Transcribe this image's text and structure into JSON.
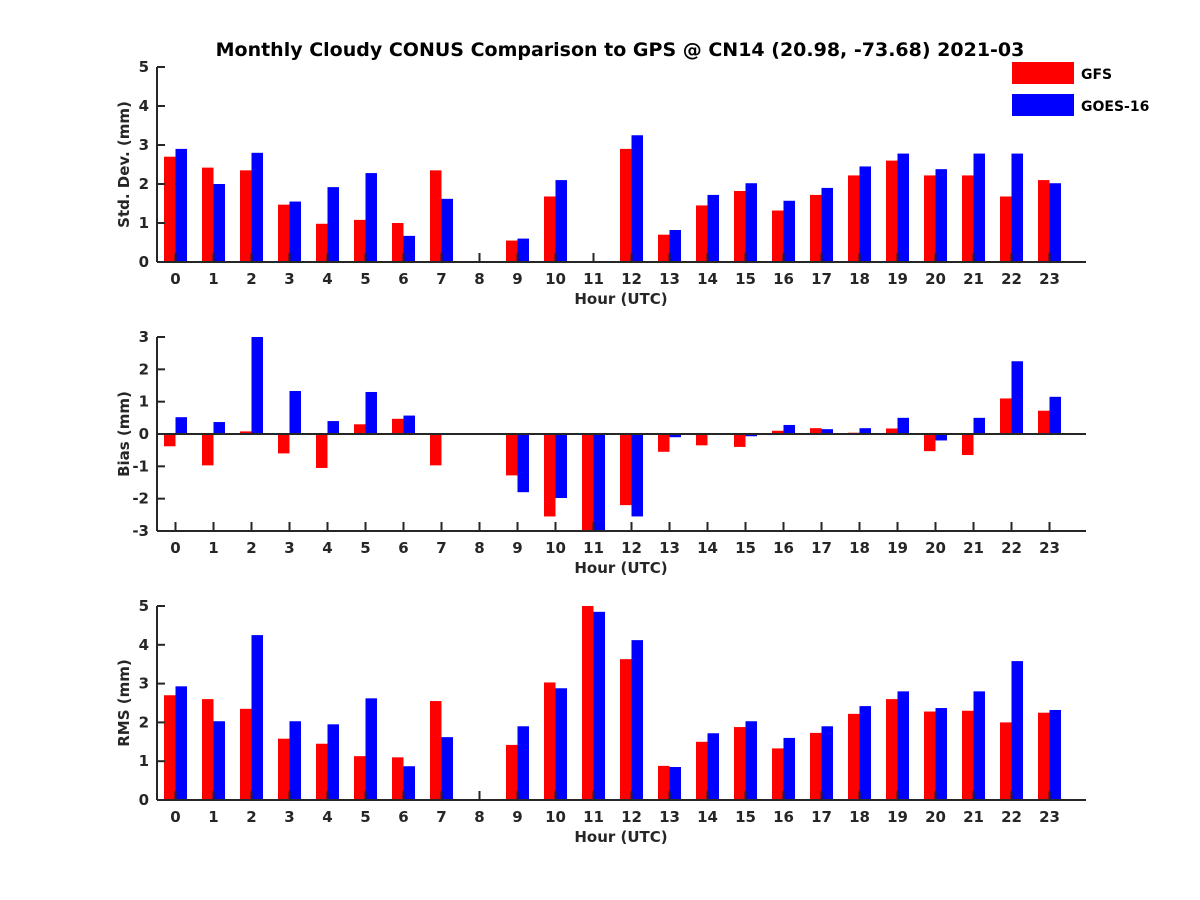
{
  "title": "Monthly Cloudy CONUS Comparison to GPS @ CN14 (20.98, -73.68) 2021-03",
  "colors": {
    "gfs": "#ff0000",
    "goes": "#0000ff",
    "axis": "#262626"
  },
  "legend": {
    "placement": "top-right",
    "entries": [
      "GFS",
      "GOES-16"
    ]
  },
  "chart_data": [
    {
      "type": "bar",
      "id": "std",
      "ylabel": "Std. Dev. (mm)",
      "xlabel": "Hour (UTC)",
      "ylim": [
        0,
        5
      ],
      "yticks": [
        0,
        1,
        2,
        3,
        4,
        5
      ],
      "categories": [
        "0",
        "1",
        "2",
        "3",
        "4",
        "5",
        "6",
        "7",
        "8",
        "9",
        "10",
        "11",
        "12",
        "13",
        "14",
        "15",
        "16",
        "17",
        "18",
        "19",
        "20",
        "21",
        "22",
        "23"
      ],
      "series": [
        {
          "name": "GFS",
          "values": [
            2.7,
            2.42,
            2.35,
            1.47,
            0.98,
            1.08,
            1.0,
            2.35,
            null,
            0.55,
            1.68,
            null,
            2.9,
            0.7,
            1.45,
            1.82,
            1.32,
            1.72,
            2.22,
            2.6,
            2.22,
            2.22,
            1.68,
            2.1
          ]
        },
        {
          "name": "GOES-16",
          "values": [
            2.9,
            2.0,
            2.8,
            1.55,
            1.92,
            2.28,
            0.67,
            1.62,
            null,
            0.6,
            2.1,
            null,
            3.25,
            0.82,
            1.72,
            2.02,
            1.57,
            1.9,
            2.45,
            2.78,
            2.38,
            2.78,
            2.78,
            2.02
          ]
        }
      ]
    },
    {
      "type": "bar",
      "id": "bias",
      "ylabel": "Bias (mm)",
      "xlabel": "Hour (UTC)",
      "ylim": [
        -3,
        3
      ],
      "yticks": [
        -3,
        -2,
        -1,
        0,
        1,
        2,
        3
      ],
      "categories": [
        "0",
        "1",
        "2",
        "3",
        "4",
        "5",
        "6",
        "7",
        "8",
        "9",
        "10",
        "11",
        "12",
        "13",
        "14",
        "15",
        "16",
        "17",
        "18",
        "19",
        "20",
        "21",
        "22",
        "23"
      ],
      "series": [
        {
          "name": "GFS",
          "values": [
            -0.38,
            -0.97,
            0.08,
            -0.6,
            -1.05,
            0.3,
            0.47,
            -0.97,
            null,
            -1.28,
            -2.55,
            -3.0,
            -2.2,
            -0.55,
            -0.35,
            -0.4,
            0.1,
            0.18,
            0.04,
            0.17,
            -0.53,
            -0.65,
            1.1,
            0.72
          ]
        },
        {
          "name": "GOES-16",
          "values": [
            0.52,
            0.37,
            3.0,
            1.33,
            0.4,
            1.3,
            0.57,
            null,
            null,
            -1.8,
            -1.98,
            -3.0,
            -2.55,
            -0.1,
            null,
            -0.07,
            0.28,
            0.15,
            0.18,
            0.5,
            -0.2,
            0.5,
            2.25,
            1.15
          ]
        }
      ]
    },
    {
      "type": "bar",
      "id": "rms",
      "ylabel": "RMS (mm)",
      "xlabel": "Hour (UTC)",
      "ylim": [
        0,
        5
      ],
      "yticks": [
        0,
        1,
        2,
        3,
        4,
        5
      ],
      "categories": [
        "0",
        "1",
        "2",
        "3",
        "4",
        "5",
        "6",
        "7",
        "8",
        "9",
        "10",
        "11",
        "12",
        "13",
        "14",
        "15",
        "16",
        "17",
        "18",
        "19",
        "20",
        "21",
        "22",
        "23"
      ],
      "series": [
        {
          "name": "GFS",
          "values": [
            2.7,
            2.6,
            2.35,
            1.58,
            1.45,
            1.13,
            1.1,
            2.55,
            null,
            1.42,
            3.03,
            5.0,
            3.63,
            0.88,
            1.5,
            1.88,
            1.33,
            1.73,
            2.22,
            2.6,
            2.28,
            2.3,
            2.0,
            2.25
          ]
        },
        {
          "name": "GOES-16",
          "values": [
            2.93,
            2.03,
            4.25,
            2.03,
            1.95,
            2.62,
            0.87,
            1.62,
            null,
            1.9,
            2.88,
            4.85,
            4.12,
            0.85,
            1.72,
            2.03,
            1.6,
            1.9,
            2.42,
            2.8,
            2.37,
            2.8,
            3.58,
            2.32
          ]
        }
      ]
    }
  ]
}
